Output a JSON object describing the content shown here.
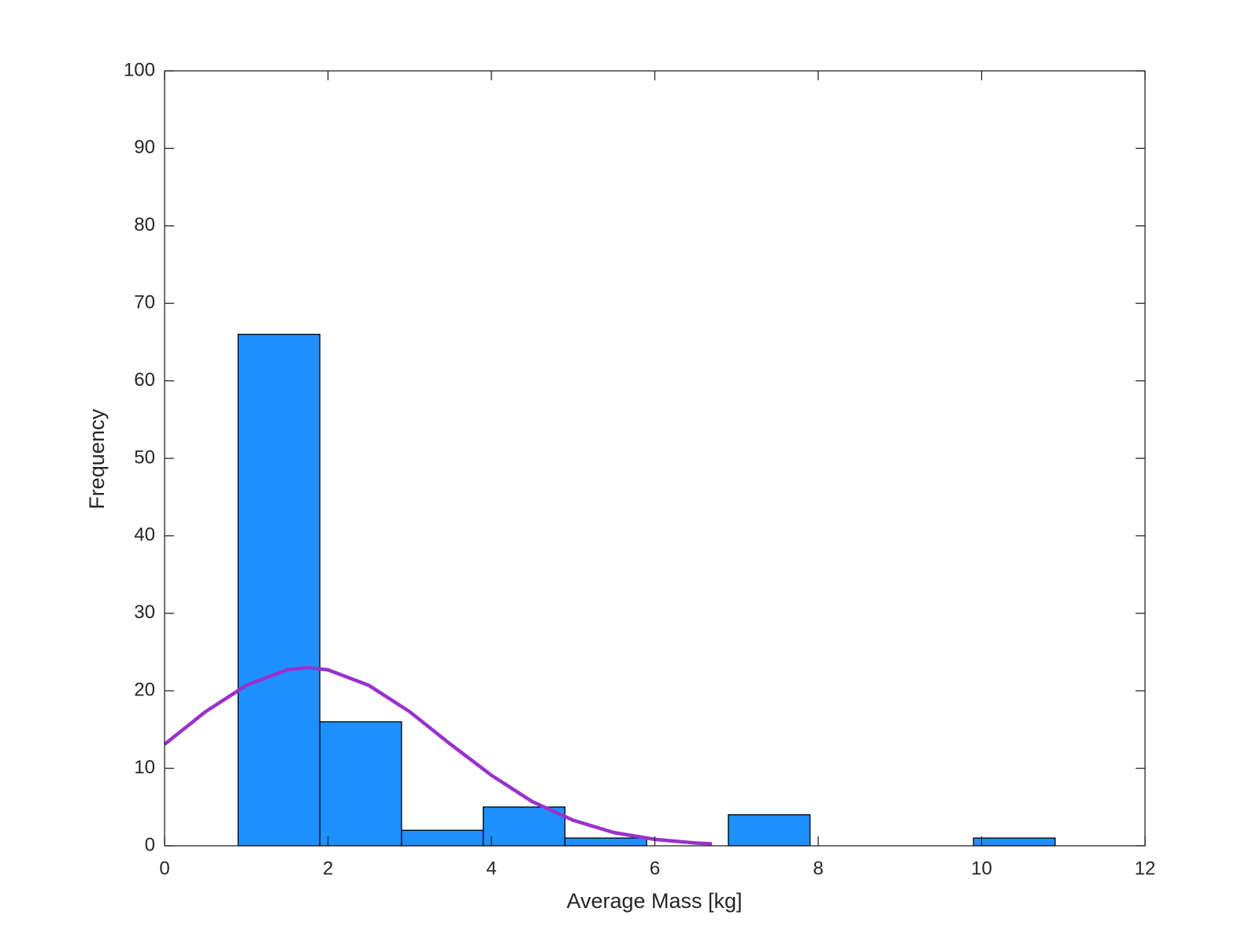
{
  "chart_data": {
    "type": "histogram",
    "xlabel": "Average Mass [kg]",
    "ylabel": "Frequency",
    "bins": [
      0.9,
      1.9,
      2.9,
      3.9,
      4.9,
      5.9,
      6.9,
      7.9,
      8.9,
      9.9,
      10.9
    ],
    "values": [
      66,
      16,
      2,
      5,
      1,
      0,
      4,
      0,
      0,
      1
    ],
    "color": "#1e90ff",
    "curve": {
      "color": "#9932cc",
      "x": [
        0,
        0.5,
        1,
        1.5,
        1.75,
        2,
        2.5,
        3,
        3.5,
        4,
        4.5,
        5,
        5.5,
        6,
        6.5,
        6.7
      ],
      "values": [
        13.1,
        17.3,
        20.7,
        22.7,
        23,
        22.7,
        20.7,
        17.3,
        13.1,
        9.1,
        5.7,
        3.3,
        1.7,
        0.83,
        0.36,
        0.26
      ]
    },
    "xlim": [
      0,
      12
    ],
    "xticks": [
      0,
      2,
      4,
      6,
      8,
      10,
      12
    ],
    "ylim": [
      0,
      100
    ],
    "yticks": [
      0,
      10,
      20,
      30,
      40,
      50,
      60,
      70,
      80,
      90,
      100
    ]
  }
}
